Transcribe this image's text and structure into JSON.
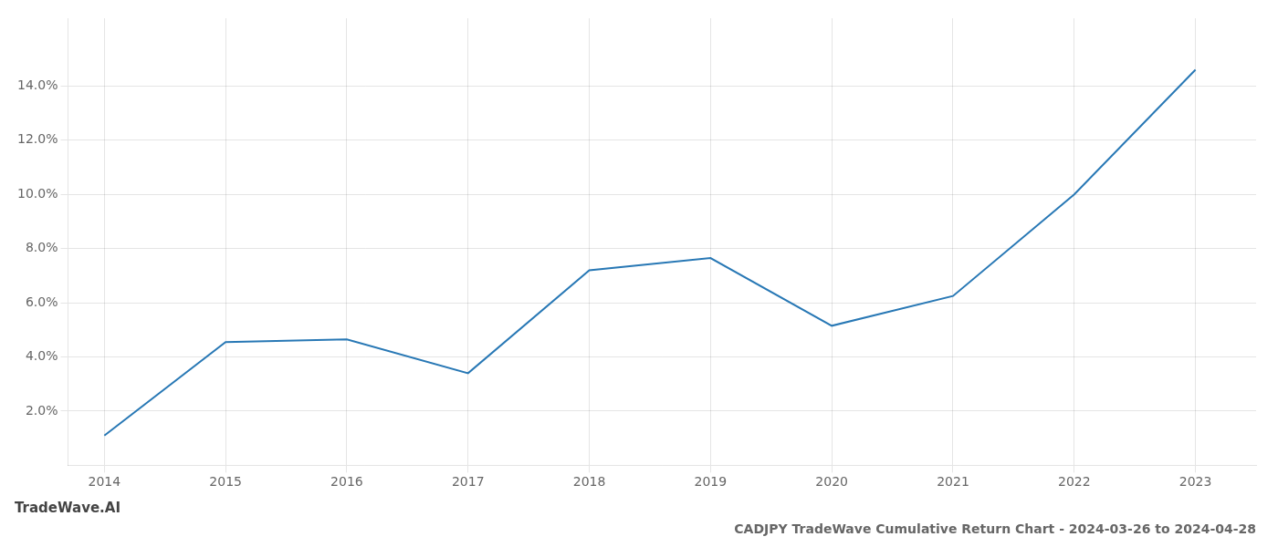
{
  "chart_data": {
    "type": "line",
    "title": "CADJPY TradeWave Cumulative Return Chart - 2024-03-26 to 2024-04-28",
    "annotations": [
      "TradeWave.AI"
    ],
    "x": [
      2014,
      2015,
      2016,
      2017,
      2018,
      2019,
      2020,
      2021,
      2022,
      2023
    ],
    "values": [
      1.1,
      4.55,
      4.65,
      3.4,
      7.2,
      7.65,
      5.15,
      6.25,
      10.0,
      14.6
    ],
    "color": "#2878b5",
    "xlim": [
      2013.7,
      2023.5
    ],
    "xticks": [
      2014,
      2015,
      2016,
      2017,
      2018,
      2019,
      2020,
      2021,
      2022,
      2023
    ],
    "ylim": [
      0.0,
      16.5
    ],
    "yticks": [
      {
        "value": 2.0,
        "label": "2.0%"
      },
      {
        "value": 4.0,
        "label": "4.0%"
      },
      {
        "value": 6.0,
        "label": "6.0%"
      },
      {
        "value": 8.0,
        "label": "8.0%"
      },
      {
        "value": 10.0,
        "label": "10.0%"
      },
      {
        "value": 12.0,
        "label": "12.0%"
      },
      {
        "value": 14.0,
        "label": "14.0%"
      }
    ],
    "grid": true
  }
}
